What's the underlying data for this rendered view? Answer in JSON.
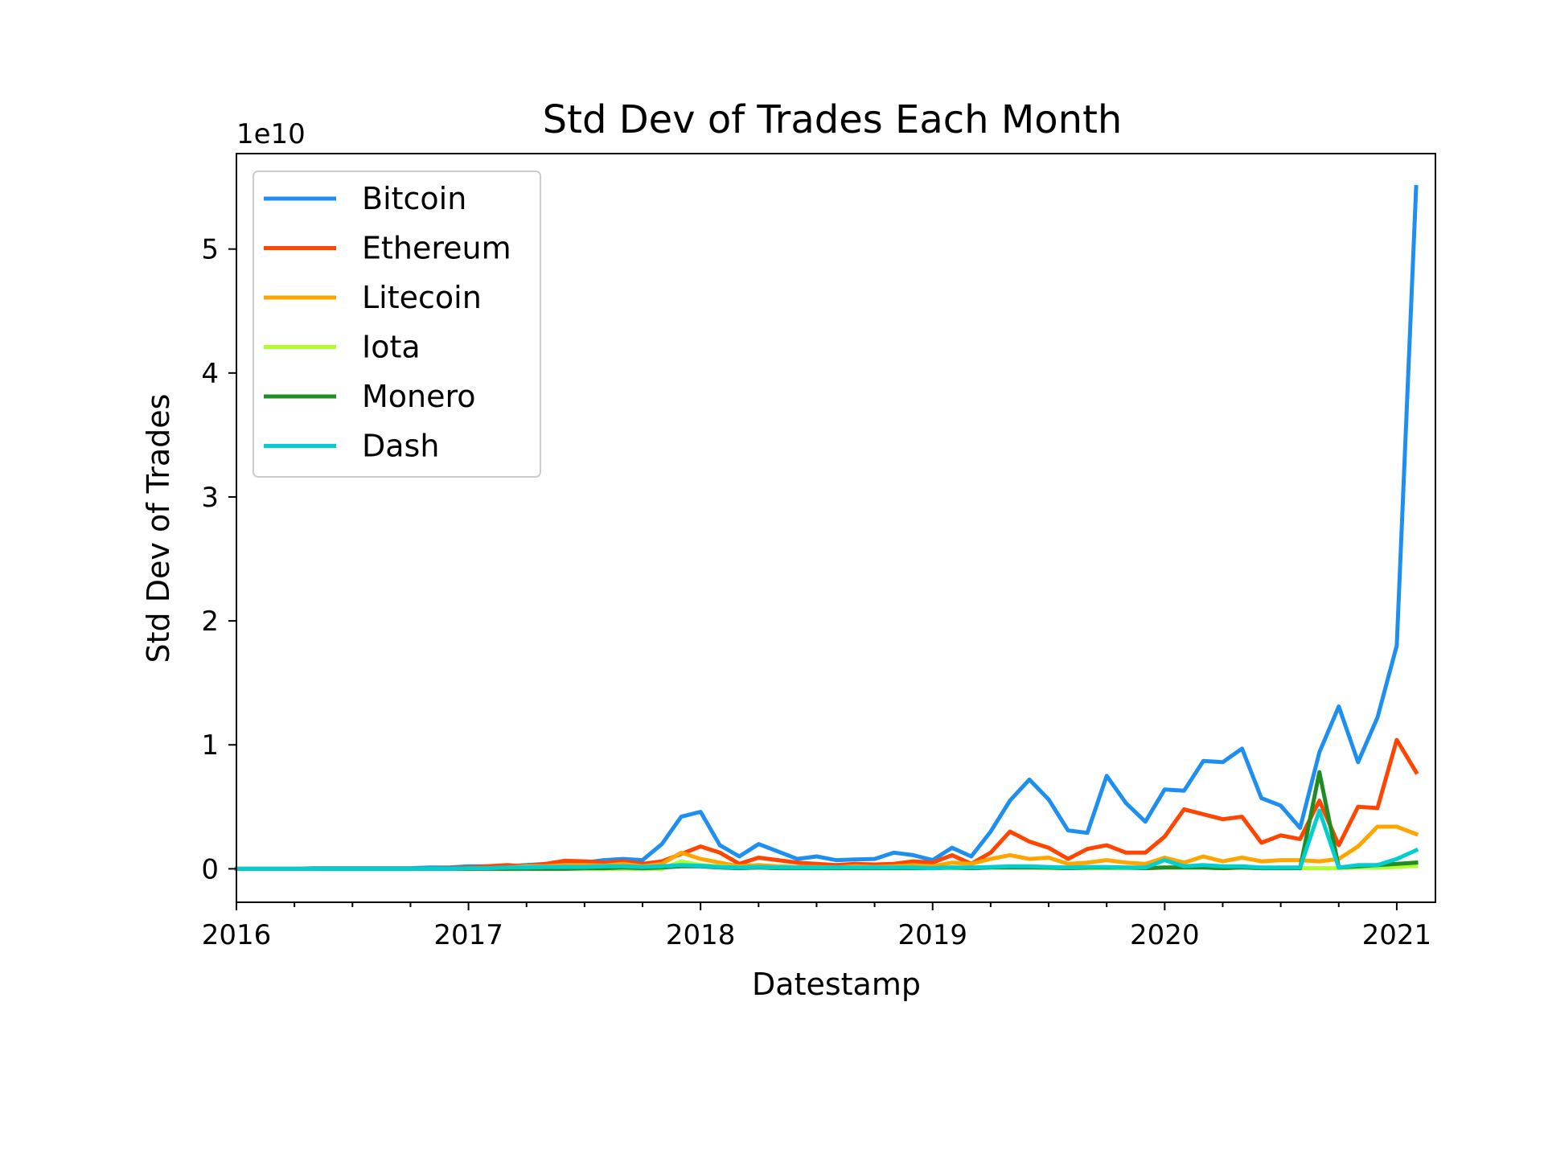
{
  "chart_data": {
    "type": "line",
    "title": "Std Dev of Trades Each Month",
    "xlabel": "Datestamp",
    "ylabel": "Std Dev of Trades",
    "y_offset_label": "1e10",
    "y_scale_multiplier": 10000000000,
    "ylim": [
      -0.27,
      5.77
    ],
    "xlim": [
      "2016-01",
      "2021-03"
    ],
    "x_tick_labels": [
      "2016",
      "2017",
      "2018",
      "2019",
      "2020",
      "2021"
    ],
    "y_tick_labels": [
      "0",
      "1",
      "2",
      "3",
      "4",
      "5"
    ],
    "legend_position": "upper left",
    "x": [
      "2016-01",
      "2016-02",
      "2016-03",
      "2016-04",
      "2016-05",
      "2016-06",
      "2016-07",
      "2016-08",
      "2016-09",
      "2016-10",
      "2016-11",
      "2016-12",
      "2017-01",
      "2017-02",
      "2017-03",
      "2017-04",
      "2017-05",
      "2017-06",
      "2017-07",
      "2017-08",
      "2017-09",
      "2017-10",
      "2017-11",
      "2017-12",
      "2018-01",
      "2018-02",
      "2018-03",
      "2018-04",
      "2018-05",
      "2018-06",
      "2018-07",
      "2018-08",
      "2018-09",
      "2018-10",
      "2018-11",
      "2018-12",
      "2019-01",
      "2019-02",
      "2019-03",
      "2019-04",
      "2019-05",
      "2019-06",
      "2019-07",
      "2019-08",
      "2019-09",
      "2019-10",
      "2019-11",
      "2019-12",
      "2020-01",
      "2020-02",
      "2020-03",
      "2020-04",
      "2020-05",
      "2020-06",
      "2020-07",
      "2020-08",
      "2020-09",
      "2020-10",
      "2020-11",
      "2020-12",
      "2021-01",
      "2021-02"
    ],
    "series": [
      {
        "name": "Bitcoin",
        "color": "#1e8ff0",
        "values": [
          0,
          0,
          0,
          0,
          0.005,
          0.005,
          0.005,
          0.005,
          0.005,
          0.005,
          0.01,
          0.01,
          0.02,
          0.02,
          0.02,
          0.03,
          0.04,
          0.05,
          0.05,
          0.07,
          0.08,
          0.07,
          0.2,
          0.42,
          0.46,
          0.19,
          0.1,
          0.2,
          0.14,
          0.08,
          0.1,
          0.07,
          0.075,
          0.08,
          0.13,
          0.11,
          0.07,
          0.17,
          0.1,
          0.3,
          0.55,
          0.72,
          0.56,
          0.31,
          0.29,
          0.75,
          0.53,
          0.38,
          0.64,
          0.63,
          0.87,
          0.86,
          0.97,
          0.57,
          0.51,
          0.33,
          0.94,
          1.31,
          0.86,
          1.22,
          1.8,
          5.5
        ]
      },
      {
        "name": "Ethereum",
        "color": "#ff4500",
        "values": [
          0,
          0,
          0,
          0,
          0,
          0,
          0,
          0,
          0,
          0,
          0,
          0.005,
          0.01,
          0.02,
          0.03,
          0.02,
          0.04,
          0.065,
          0.06,
          0.05,
          0.06,
          0.04,
          0.06,
          0.12,
          0.18,
          0.13,
          0.04,
          0.09,
          0.07,
          0.05,
          0.04,
          0.03,
          0.04,
          0.035,
          0.04,
          0.06,
          0.05,
          0.11,
          0.04,
          0.13,
          0.3,
          0.22,
          0.17,
          0.08,
          0.16,
          0.19,
          0.13,
          0.13,
          0.26,
          0.48,
          0.44,
          0.4,
          0.42,
          0.21,
          0.27,
          0.24,
          0.55,
          0.19,
          0.5,
          0.49,
          1.04,
          0.78
        ]
      },
      {
        "name": "Litecoin",
        "color": "#ffa500",
        "values": [
          0,
          0,
          0,
          0,
          0,
          0,
          0,
          0,
          0,
          0,
          0,
          0,
          0,
          0.005,
          0.01,
          0.02,
          0.02,
          0.03,
          0.03,
          0.025,
          0.04,
          0.02,
          0.04,
          0.13,
          0.08,
          0.05,
          0.02,
          0.03,
          0.02,
          0.015,
          0.015,
          0.01,
          0.02,
          0.015,
          0.02,
          0.03,
          0.02,
          0.05,
          0.04,
          0.08,
          0.11,
          0.08,
          0.09,
          0.04,
          0.05,
          0.07,
          0.05,
          0.04,
          0.09,
          0.05,
          0.1,
          0.06,
          0.09,
          0.06,
          0.07,
          0.07,
          0.06,
          0.08,
          0.18,
          0.34,
          0.34,
          0.28
        ]
      },
      {
        "name": "Iota",
        "color": "#adff2f",
        "values": [
          0,
          0,
          0,
          0,
          0,
          0,
          0,
          0,
          0,
          0,
          0,
          0,
          0,
          0,
          0,
          0,
          0,
          0,
          0,
          0,
          0,
          0,
          0,
          0.06,
          0.03,
          0.02,
          0.01,
          0.01,
          0.01,
          0.01,
          0.005,
          0.005,
          0.005,
          0.005,
          0.005,
          0.005,
          0.005,
          0.005,
          0.005,
          0.01,
          0.01,
          0.01,
          0.005,
          0.005,
          0.005,
          0.005,
          0.005,
          0.005,
          0.01,
          0.01,
          0.01,
          0.005,
          0.01,
          0.005,
          0.005,
          0.005,
          0.005,
          0.005,
          0.01,
          0.01,
          0.015,
          0.025
        ]
      },
      {
        "name": "Monero",
        "color": "#228b22",
        "values": [
          0,
          0,
          0,
          0,
          0,
          0,
          0,
          0,
          0,
          0,
          0,
          0,
          0,
          0,
          0,
          0,
          0,
          0,
          0.005,
          0.005,
          0.01,
          0.005,
          0.01,
          0.02,
          0.02,
          0.01,
          0.005,
          0.01,
          0.005,
          0.005,
          0.005,
          0.005,
          0.005,
          0.005,
          0.005,
          0.005,
          0.005,
          0.01,
          0.005,
          0.01,
          0.01,
          0.01,
          0.01,
          0.005,
          0.01,
          0.01,
          0.01,
          0.005,
          0.01,
          0.01,
          0.01,
          0.005,
          0.01,
          0.005,
          0.005,
          0.005,
          0.78,
          0.01,
          0.02,
          0.03,
          0.04,
          0.05
        ]
      },
      {
        "name": "Dash",
        "color": "#00ced1",
        "values": [
          0,
          0,
          0,
          0,
          0,
          0,
          0,
          0,
          0,
          0,
          0,
          0,
          0.005,
          0.005,
          0.01,
          0.01,
          0.015,
          0.015,
          0.015,
          0.02,
          0.02,
          0.015,
          0.02,
          0.03,
          0.025,
          0.015,
          0.01,
          0.015,
          0.01,
          0.01,
          0.01,
          0.01,
          0.01,
          0.01,
          0.01,
          0.01,
          0.005,
          0.01,
          0.01,
          0.015,
          0.02,
          0.02,
          0.015,
          0.01,
          0.015,
          0.015,
          0.01,
          0.01,
          0.07,
          0.02,
          0.03,
          0.02,
          0.02,
          0.01,
          0.01,
          0.01,
          0.47,
          0.01,
          0.03,
          0.03,
          0.08,
          0.15
        ]
      }
    ]
  }
}
